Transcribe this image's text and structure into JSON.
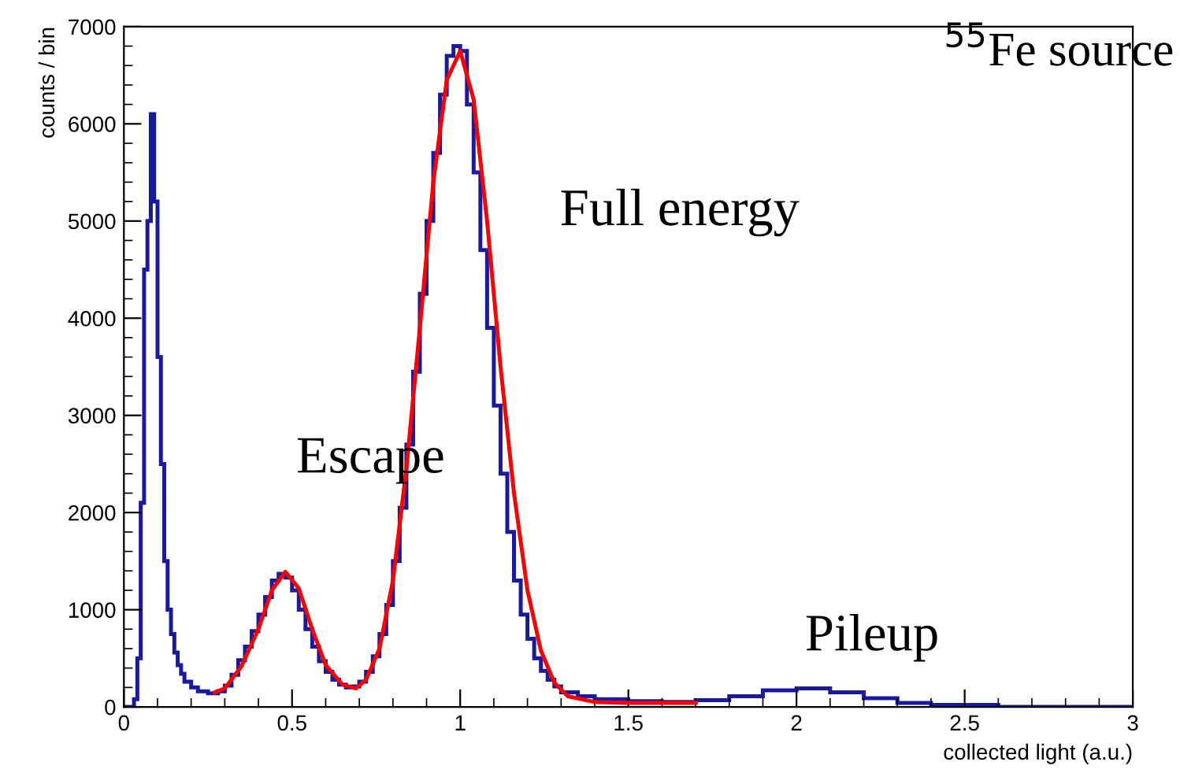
{
  "chart_data": {
    "type": "histogram",
    "xlabel": "collected light (a.u.)",
    "ylabel": "counts / bin",
    "bins": [
      0,
      0.03,
      0.04,
      0.05,
      0.06,
      0.07,
      0.08,
      0.09,
      0.1,
      0.11,
      0.12,
      0.13,
      0.14,
      0.15,
      0.16,
      0.17,
      0.18,
      0.2,
      0.22,
      0.25,
      0.28,
      0.3,
      0.32,
      0.34,
      0.36,
      0.38,
      0.4,
      0.42,
      0.44,
      0.46,
      0.48,
      0.5,
      0.52,
      0.54,
      0.56,
      0.58,
      0.6,
      0.62,
      0.64,
      0.66,
      0.68,
      0.7,
      0.72,
      0.74,
      0.76,
      0.78,
      0.8,
      0.82,
      0.84,
      0.86,
      0.88,
      0.9,
      0.92,
      0.94,
      0.96,
      0.98,
      1.0,
      1.02,
      1.04,
      1.06,
      1.08,
      1.1,
      1.12,
      1.14,
      1.16,
      1.18,
      1.2,
      1.22,
      1.24,
      1.26,
      1.28,
      1.3,
      1.35,
      1.4,
      1.5,
      1.6,
      1.7,
      1.8,
      1.9,
      2.0,
      2.1,
      2.2,
      2.3,
      2.4,
      2.6,
      3.0
    ],
    "series": [
      {
        "type": "histogram",
        "color": "#1a1aa0",
        "values": [
          0,
          80,
          500,
          2100,
          4500,
          5000,
          6100,
          5200,
          3600,
          2500,
          1500,
          1000,
          750,
          560,
          430,
          340,
          260,
          200,
          160,
          140,
          160,
          220,
          330,
          480,
          620,
          780,
          950,
          1130,
          1300,
          1370,
          1330,
          1200,
          1000,
          800,
          620,
          470,
          360,
          280,
          230,
          200,
          210,
          260,
          360,
          520,
          750,
          1050,
          1500,
          2050,
          2700,
          3450,
          4250,
          5000,
          5700,
          6300,
          6700,
          6800,
          6750,
          6200,
          5500,
          4700,
          3900,
          3100,
          2400,
          1800,
          1300,
          950,
          700,
          500,
          370,
          280,
          210,
          150,
          110,
          80,
          60,
          50,
          70,
          110,
          170,
          190,
          150,
          90,
          40,
          20,
          0
        ]
      },
      {
        "type": "line",
        "color": "#ff0000",
        "x": [
          0.27,
          0.3,
          0.35,
          0.4,
          0.44,
          0.48,
          0.52,
          0.56,
          0.6,
          0.65,
          0.69,
          0.72,
          0.76,
          0.8,
          0.84,
          0.88,
          0.92,
          0.96,
          1.0,
          1.04,
          1.08,
          1.12,
          1.16,
          1.2,
          1.24,
          1.28,
          1.32,
          1.4,
          1.5,
          1.7
        ],
        "values": [
          150,
          190,
          420,
          800,
          1200,
          1390,
          1220,
          800,
          430,
          230,
          190,
          280,
          600,
          1300,
          2450,
          3900,
          5400,
          6450,
          6750,
          6250,
          5000,
          3500,
          2200,
          1200,
          580,
          250,
          110,
          50,
          40,
          40
        ]
      }
    ],
    "xlim": [
      0,
      3
    ],
    "xticks": [
      0,
      0.5,
      1,
      1.5,
      2,
      2.5,
      3
    ],
    "ylim": [
      0,
      7000
    ],
    "yticks": [
      0,
      1000,
      2000,
      3000,
      4000,
      5000,
      6000,
      7000
    ],
    "grid": false,
    "legend": false,
    "annotations": [
      "Escape",
      "Full energy",
      "Pileup",
      "$^{55}$Fe source"
    ]
  }
}
